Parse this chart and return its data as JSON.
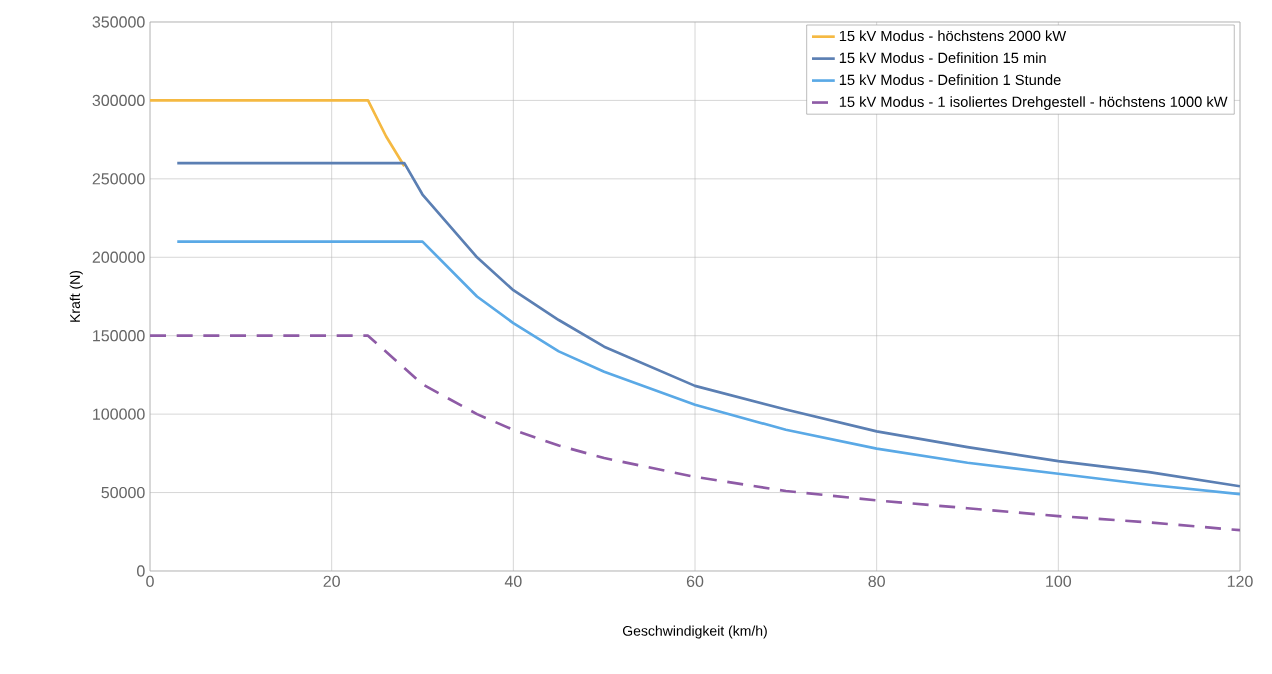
{
  "chart_data": {
    "type": "line",
    "xlabel": "Geschwindigkeit (km/h)",
    "ylabel": "Kraft (N)",
    "xlim": [
      0,
      120
    ],
    "ylim": [
      0,
      350000
    ],
    "xticks": [
      0,
      20,
      40,
      60,
      80,
      100,
      120
    ],
    "yticks": [
      0,
      50000,
      100000,
      150000,
      200000,
      250000,
      300000,
      350000
    ],
    "grid": true,
    "legend": "top right",
    "marker": "none",
    "series": [
      {
        "name": "15 kV Modus - höchstens 2000 kW",
        "color": "#f5b942",
        "line_style": "solid",
        "x": [
          0,
          24,
          26,
          28
        ],
        "values": [
          300000,
          300000,
          277000,
          258000
        ]
      },
      {
        "name": "15 kV Modus - Definition 15 min",
        "color": "#5b7fb3",
        "line_style": "solid",
        "x": [
          3,
          28,
          30,
          36,
          40,
          45,
          50,
          60,
          70,
          80,
          90,
          100,
          110,
          120
        ],
        "values": [
          260000,
          260000,
          240000,
          200000,
          179000,
          160000,
          143000,
          118000,
          103000,
          89000,
          79000,
          70000,
          63000,
          54000
        ]
      },
      {
        "name": "15 kV Modus - Definition 1 Stunde",
        "color": "#5aa9e6",
        "line_style": "solid",
        "x": [
          3,
          30,
          36,
          40,
          45,
          50,
          60,
          70,
          80,
          90,
          100,
          110,
          120
        ],
        "values": [
          210000,
          210000,
          175000,
          158000,
          140000,
          127000,
          106000,
          90000,
          78000,
          69000,
          62000,
          55000,
          49000
        ]
      },
      {
        "name": "15 kV Modus - 1 isoliertes Drehgestell - höchstens 1000 kW",
        "color": "#8e5ba6",
        "line_style": "dashed",
        "x": [
          0,
          24,
          30,
          36,
          40,
          45,
          50,
          60,
          70,
          80,
          90,
          100,
          110,
          120
        ],
        "values": [
          150000,
          150000,
          119000,
          100000,
          90000,
          80000,
          72000,
          60000,
          51000,
          45000,
          40000,
          35000,
          31000,
          26000
        ]
      }
    ]
  }
}
